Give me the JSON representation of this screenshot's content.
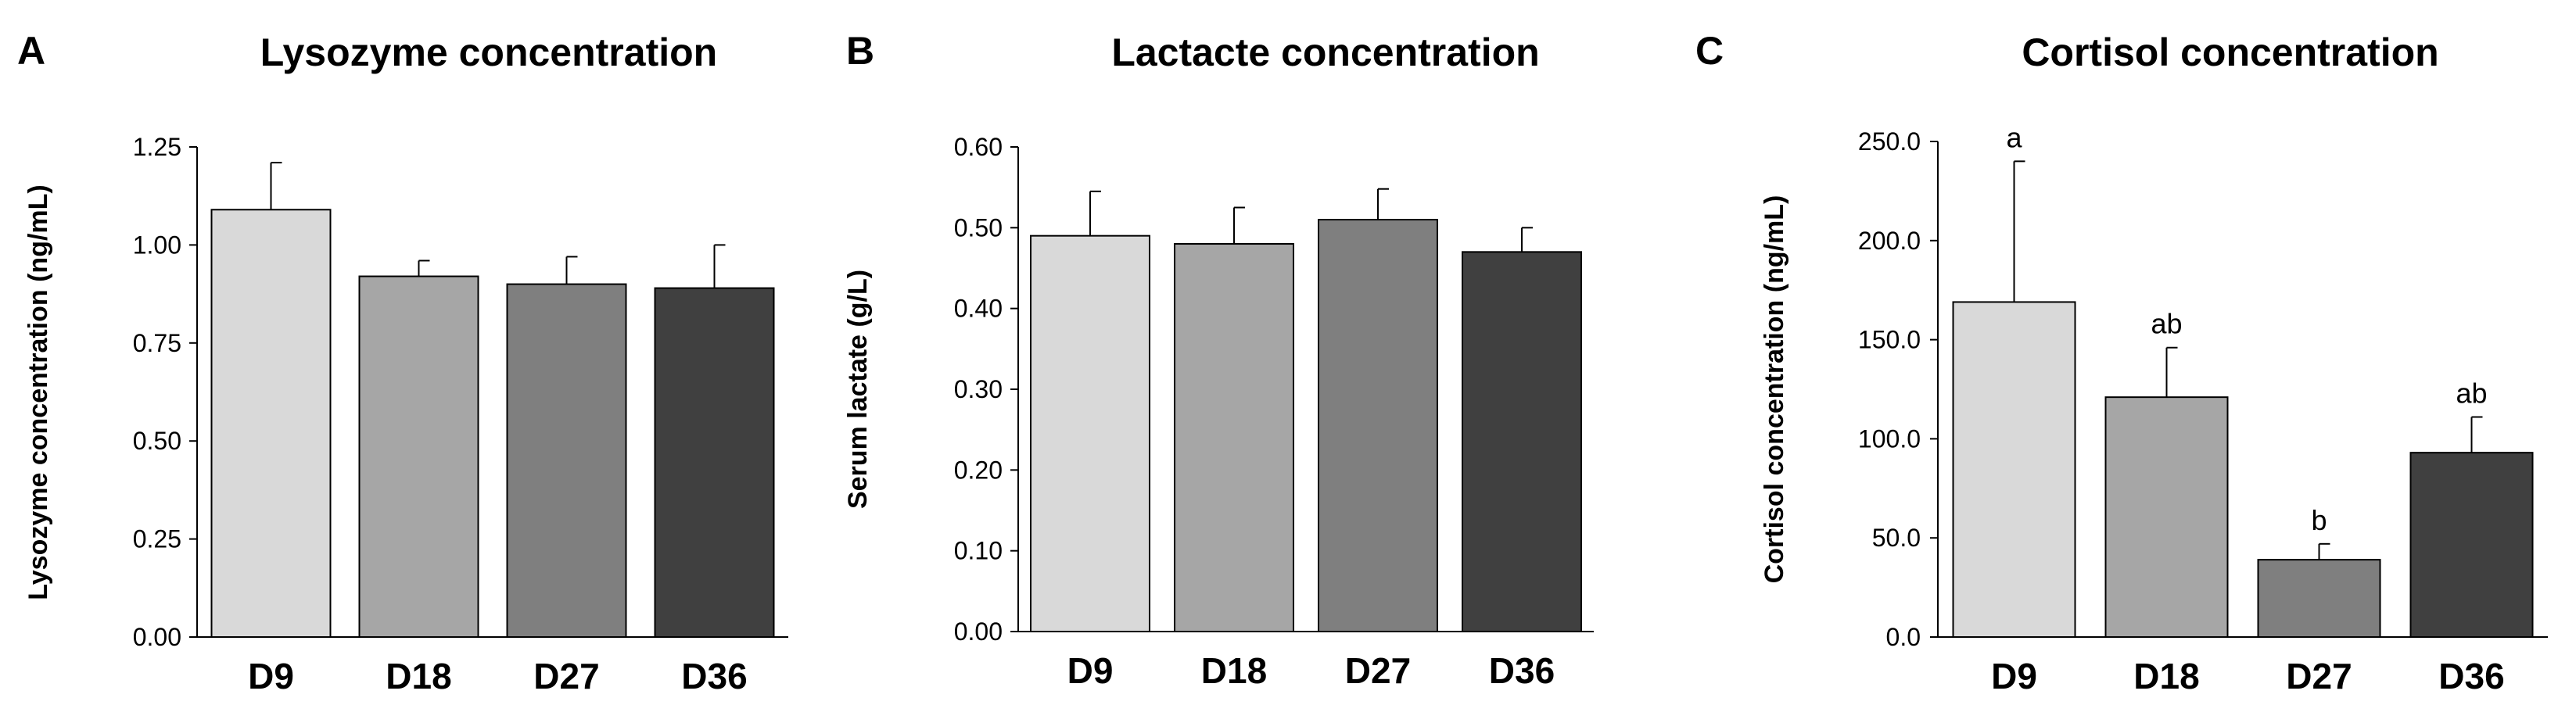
{
  "chart_data": [
    {
      "type": "bar",
      "panel_label": "A",
      "title": "Lysozyme concentration",
      "xlabel": "",
      "ylabel": "Lysozyme concentration (ng/mL)",
      "ylim": [
        0,
        1.25
      ],
      "yticks": [
        "0.00",
        "0.25",
        "0.50",
        "0.75",
        "1.00",
        "1.25"
      ],
      "categories": [
        "D9",
        "D18",
        "D27",
        "D36"
      ],
      "values": [
        1.09,
        0.92,
        0.9,
        0.89
      ],
      "errors": [
        0.12,
        0.04,
        0.07,
        0.11
      ],
      "colors": [
        "#d9d9d9",
        "#a6a6a6",
        "#7f7f7f",
        "#404040"
      ],
      "significance": [],
      "grid": false
    },
    {
      "type": "bar",
      "panel_label": "B",
      "title": "Lactacte concentration",
      "xlabel": "",
      "ylabel": "Serum lactate (g/L)",
      "ylim": [
        0,
        0.6
      ],
      "yticks": [
        "0.00",
        "0.10",
        "0.20",
        "0.30",
        "0.40",
        "0.50",
        "0.60"
      ],
      "categories": [
        "D9",
        "D18",
        "D27",
        "D36"
      ],
      "values": [
        0.49,
        0.48,
        0.51,
        0.47
      ],
      "errors": [
        0.055,
        0.045,
        0.038,
        0.03
      ],
      "colors": [
        "#d9d9d9",
        "#a6a6a6",
        "#7f7f7f",
        "#404040"
      ],
      "significance": [],
      "grid": false
    },
    {
      "type": "bar",
      "panel_label": "C",
      "title": "Cortisol concentration",
      "xlabel": "",
      "ylabel": "Cortisol  concentration (ng/mL)",
      "ylim": [
        0,
        250
      ],
      "yticks": [
        "0.0",
        "50.0",
        "100.0",
        "150.0",
        "200.0",
        "250.0"
      ],
      "categories": [
        "D9",
        "D18",
        "D27",
        "D36"
      ],
      "values": [
        169,
        121,
        39,
        93
      ],
      "errors": [
        71,
        25,
        8,
        18
      ],
      "colors": [
        "#d9d9d9",
        "#a6a6a6",
        "#7f7f7f",
        "#404040"
      ],
      "significance": [
        "a",
        "ab",
        "b",
        "ab"
      ],
      "grid": false
    }
  ]
}
